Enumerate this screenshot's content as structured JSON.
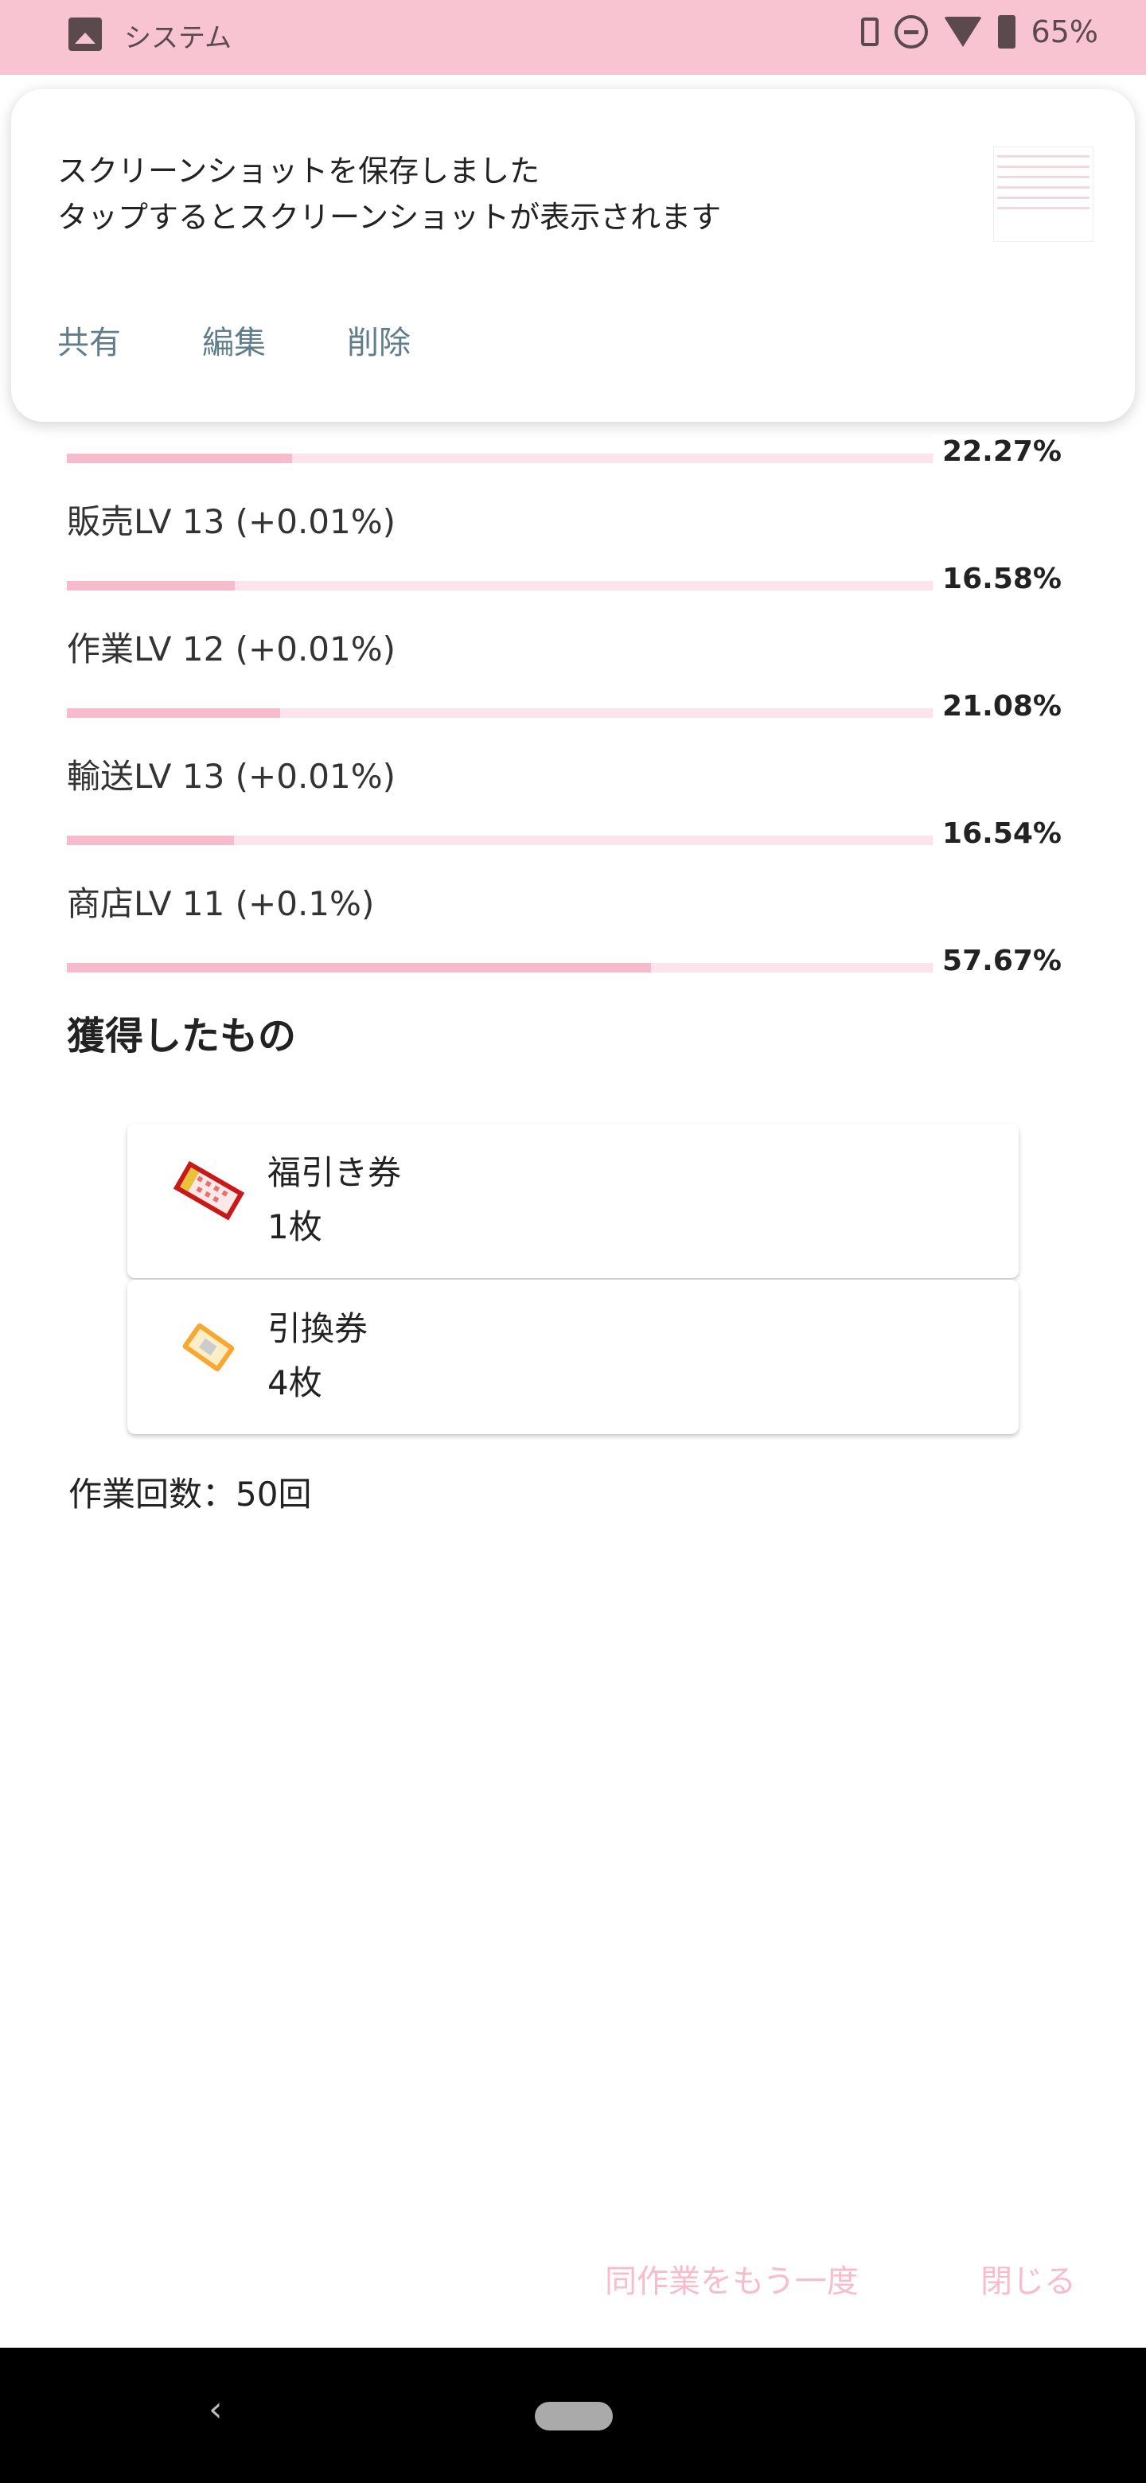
{
  "status_bar": {
    "app": "システム",
    "battery": "65%",
    "wifi_badge": "4"
  },
  "notification": {
    "line1": "スクリーンショットを保存しました",
    "line2": "タップするとスクリーンショットが表示されます",
    "actions": [
      "共有",
      "編集",
      "削除"
    ]
  },
  "skills": [
    {
      "label": "",
      "percent": "22.27%",
      "progress": 22.27
    },
    {
      "label": "販売LV 13 (+0.01%)",
      "percent": "16.58%",
      "progress": 16.58
    },
    {
      "label": "作業LV 12 (+0.01%)",
      "percent": "21.08%",
      "progress": 21.08
    },
    {
      "label": "輸送LV 13 (+0.01%)",
      "percent": "16.54%",
      "progress": 16.54
    },
    {
      "label": "商店LV 11 (+0.1%)",
      "percent": "57.67%",
      "progress": 57.67
    }
  ],
  "rewards": {
    "title": "獲得したもの",
    "items": [
      {
        "name": "福引き券",
        "qty": "1枚",
        "icon": "raffle-ticket-icon"
      },
      {
        "name": "引換券",
        "qty": "4枚",
        "icon": "voucher-icon"
      }
    ]
  },
  "work_count": "作業回数：50回",
  "footer": {
    "repeat": "同作業をもう一度",
    "close": "閉じる"
  },
  "colors": {
    "accent": "#f6bccb",
    "track": "#fde4ec",
    "status_bar": "#f9c4d2",
    "action": "#5f7d8a"
  }
}
